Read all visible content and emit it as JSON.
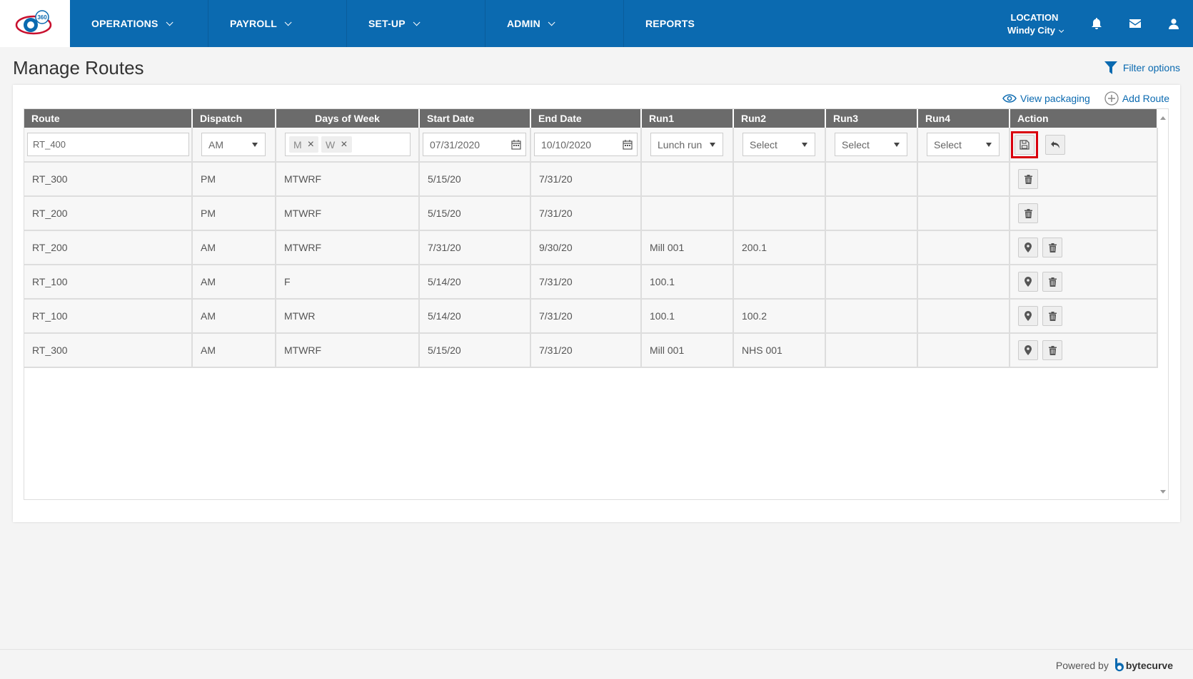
{
  "nav": {
    "items": [
      {
        "label": "OPERATIONS",
        "dropdown": true
      },
      {
        "label": "PAYROLL",
        "dropdown": true
      },
      {
        "label": "SET-UP",
        "dropdown": true
      },
      {
        "label": "ADMIN",
        "dropdown": true
      },
      {
        "label": "REPORTS",
        "dropdown": false
      }
    ],
    "location_label": "LOCATION",
    "location_value": "Windy City",
    "logo_text": "360"
  },
  "page": {
    "title": "Manage Routes",
    "filter_label": "Filter options",
    "view_packaging_label": "View packaging",
    "add_route_label": "Add Route"
  },
  "table": {
    "columns": [
      "Route",
      "Dispatch",
      "Days of Week",
      "Start Date",
      "End Date",
      "Run1",
      "Run2",
      "Run3",
      "Run4",
      "Action"
    ],
    "edit_row": {
      "route": "RT_400",
      "dispatch": "AM",
      "days": [
        "M",
        "W"
      ],
      "start_date": "07/31/2020",
      "end_date": "10/10/2020",
      "run1": "Lunch run",
      "run2": "Select",
      "run3": "Select",
      "run4": "Select"
    },
    "rows": [
      {
        "route": "RT_300",
        "dispatch": "PM",
        "days": "MTWRF",
        "start": "5/15/20",
        "end": "7/31/20",
        "run1": "",
        "run2": "",
        "run3": "",
        "run4": "",
        "has_location": false
      },
      {
        "route": "RT_200",
        "dispatch": "PM",
        "days": "MTWRF",
        "start": "5/15/20",
        "end": "7/31/20",
        "run1": "",
        "run2": "",
        "run3": "",
        "run4": "",
        "has_location": false
      },
      {
        "route": "RT_200",
        "dispatch": "AM",
        "days": "MTWRF",
        "start": "7/31/20",
        "end": "9/30/20",
        "run1": "Mill 001",
        "run2": "200.1",
        "run3": "",
        "run4": "",
        "has_location": true
      },
      {
        "route": "RT_100",
        "dispatch": "AM",
        "days": "F",
        "start": "5/14/20",
        "end": "7/31/20",
        "run1": "100.1",
        "run2": "",
        "run3": "",
        "run4": "",
        "has_location": true
      },
      {
        "route": "RT_100",
        "dispatch": "AM",
        "days": "MTWR",
        "start": "5/14/20",
        "end": "7/31/20",
        "run1": "100.1",
        "run2": "100.2",
        "run3": "",
        "run4": "",
        "has_location": true
      },
      {
        "route": "RT_300",
        "dispatch": "AM",
        "days": "MTWRF",
        "start": "5/15/20",
        "end": "7/31/20",
        "run1": "Mill 001",
        "run2": "NHS 001",
        "run3": "",
        "run4": "",
        "has_location": true
      }
    ]
  },
  "footer": {
    "powered_by": "Powered by",
    "brand": "bytecurve"
  },
  "colors": {
    "primary": "#0b6ab0",
    "header_gray": "#6b6b6b",
    "highlight": "#d9000d"
  }
}
